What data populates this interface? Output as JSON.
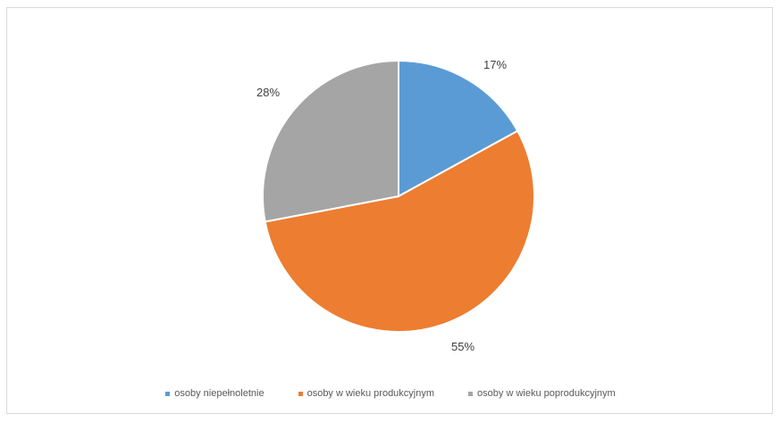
{
  "chart_data": {
    "type": "pie",
    "title": "",
    "categories": [
      "osoby niepełnoletnie",
      "osoby w wieku produkcyjnym",
      "osoby w wieku poprodukcyjnym"
    ],
    "values": [
      17,
      55,
      28
    ],
    "labels": [
      "17%",
      "55%",
      "28%"
    ],
    "colors": [
      "#5b9bd5",
      "#ed7d31",
      "#a5a5a5"
    ],
    "legend_position": "bottom"
  }
}
